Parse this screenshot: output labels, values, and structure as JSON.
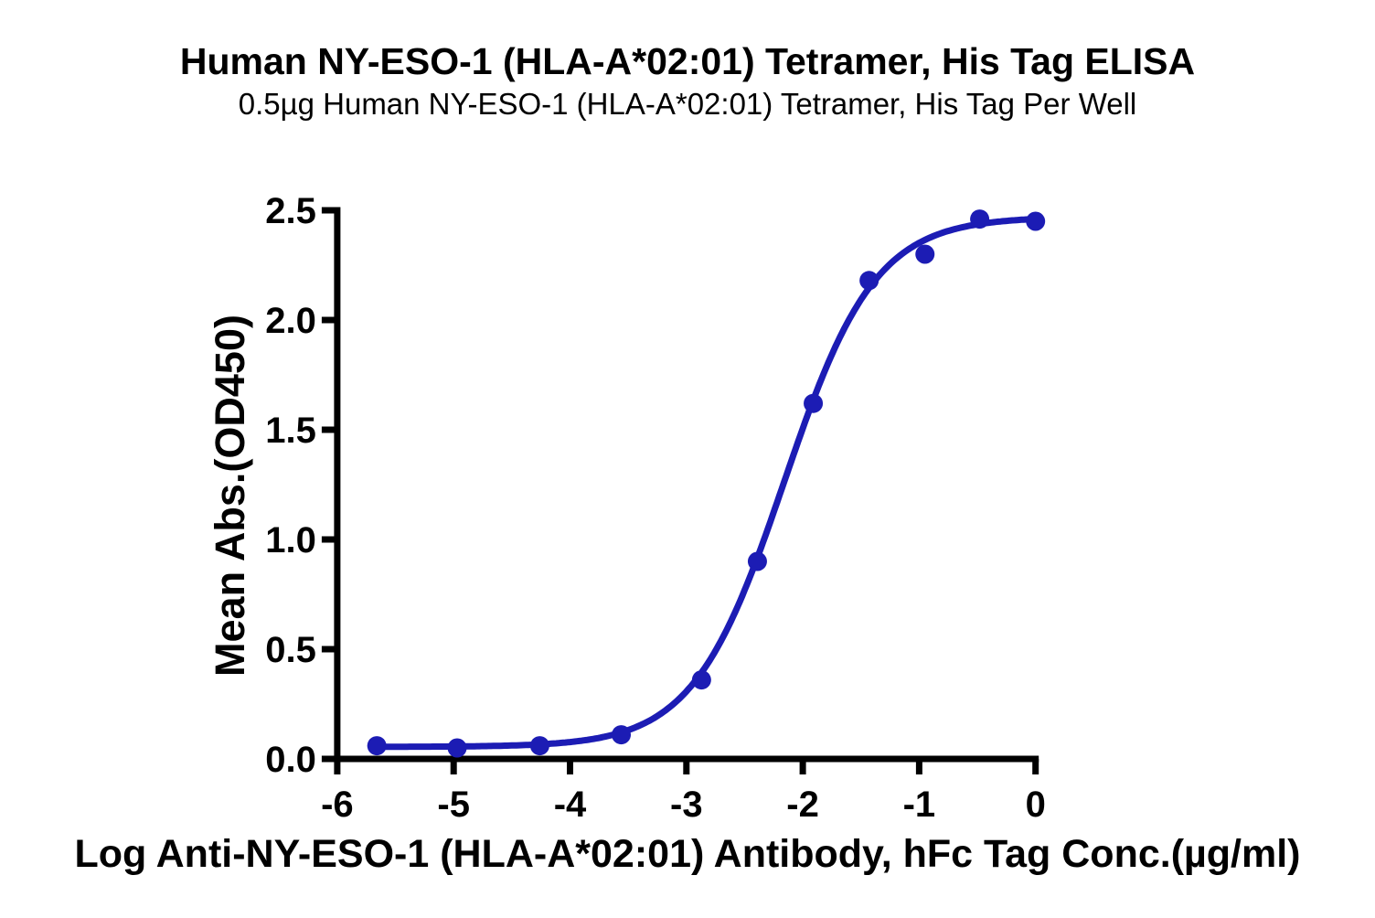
{
  "chart_data": {
    "type": "scatter",
    "title": "Human NY-ESO-1 (HLA-A*02:01) Tetramer, His Tag ELISA",
    "subtitle": "0.5µg Human NY-ESO-1 (HLA-A*02:01) Tetramer, His Tag Per Well",
    "xlabel": "Log Anti-NY-ESO-1 (HLA-A*02:01) Antibody, hFc Tag Conc.(µg/ml)",
    "ylabel": "Mean Abs.(OD450)",
    "x": [
      -5.66,
      -4.97,
      -4.26,
      -3.56,
      -2.87,
      -2.39,
      -1.91,
      -1.43,
      -0.95,
      -0.48,
      0.0
    ],
    "y": [
      0.06,
      0.05,
      0.06,
      0.11,
      0.36,
      0.9,
      1.62,
      2.18,
      2.3,
      2.46,
      2.45
    ],
    "xlim": [
      -6,
      0
    ],
    "ylim": [
      0.0,
      2.5
    ],
    "x_tick_values": [
      -6,
      -5,
      -4,
      -3,
      -2,
      -1,
      0
    ],
    "x_tick_labels": [
      "-6",
      "-5",
      "-4",
      "-3",
      "-2",
      "-1",
      "0"
    ],
    "y_tick_values": [
      0.0,
      0.5,
      1.0,
      1.5,
      2.0,
      2.5
    ],
    "y_tick_labels": [
      "0.0",
      "0.5",
      "1.0",
      "1.5",
      "2.0",
      "2.5"
    ],
    "fit_curve": {
      "model": "4PL",
      "bottom": 0.055,
      "top": 2.47,
      "logEC50": -2.16,
      "hill": 1.11
    },
    "grid": false,
    "legend": false,
    "colors": {
      "series": "#1c1cb4",
      "axis": "#000000",
      "text": "#000000",
      "background": "#ffffff"
    }
  }
}
